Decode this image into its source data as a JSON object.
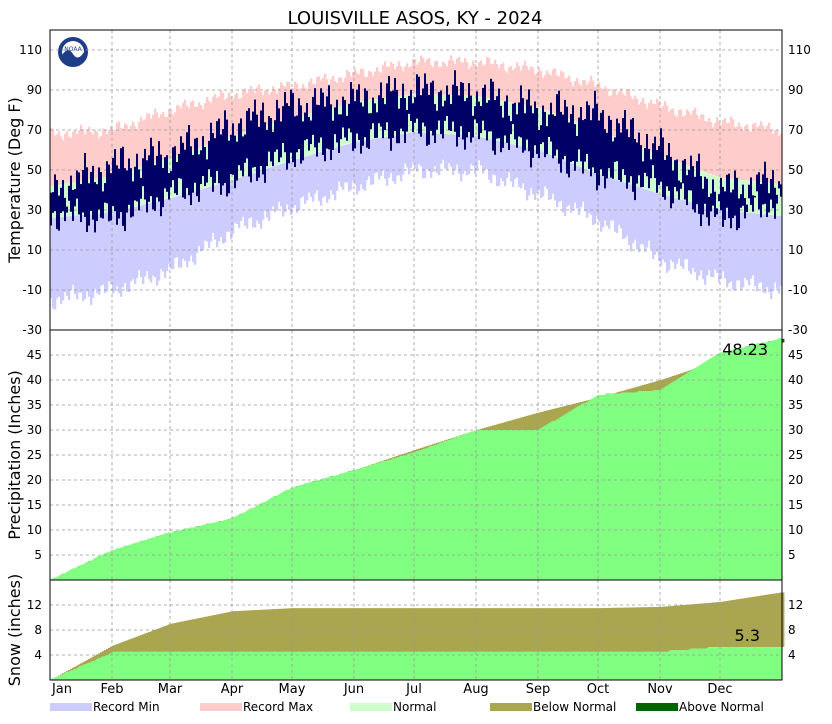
{
  "title": "LOUISVILLE   ASOS, KY - 2024",
  "colors": {
    "record_min": "#ccccff",
    "record_max": "#ffcccc",
    "normal": "#ccffcc",
    "below_normal": "#aaa64f",
    "above_normal": "#006400",
    "observed_temp": "#000066",
    "precip_fill": "#80ff80",
    "snow_fill": "#80ff80",
    "grid": "#999999"
  },
  "month_labels": [
    "Jan",
    "Feb",
    "Mar",
    "Apr",
    "May",
    "Jun",
    "Jul",
    "Aug",
    "Sep",
    "Oct",
    "Nov",
    "Dec"
  ],
  "legend": [
    {
      "label": "Record Min",
      "color": "#ccccff"
    },
    {
      "label": "Record Max",
      "color": "#ffcccc"
    },
    {
      "label": "Normal",
      "color": "#ccffcc"
    },
    {
      "label": "Below Normal",
      "color": "#aaa64f"
    },
    {
      "label": "Above Normal",
      "color": "#006400"
    }
  ],
  "chart_data": [
    {
      "type": "area",
      "panel": "temperature",
      "ylabel": "Temperature (Deg F)",
      "ylim": [
        -30,
        120
      ],
      "yticks": [
        -30,
        -10,
        10,
        30,
        50,
        70,
        90,
        110
      ],
      "grid": true,
      "x": [
        "Jan 1",
        "Feb 1",
        "Mar 1",
        "Apr 1",
        "May 1",
        "Jun 1",
        "Jul 1",
        "Aug 1",
        "Sep 1",
        "Oct 1",
        "Nov 1",
        "Dec 1",
        "Dec 31"
      ],
      "series": [
        {
          "name": "Record Max",
          "values": [
            68,
            70,
            80,
            88,
            92,
            98,
            104,
            104,
            100,
            92,
            82,
            74,
            70
          ]
        },
        {
          "name": "Record Min",
          "values": [
            -15,
            -10,
            0,
            20,
            32,
            42,
            50,
            50,
            38,
            25,
            5,
            -5,
            -10
          ]
        },
        {
          "name": "Normal High",
          "values": [
            42,
            47,
            56,
            67,
            76,
            84,
            88,
            87,
            81,
            70,
            57,
            46,
            43
          ]
        },
        {
          "name": "Normal Low",
          "values": [
            26,
            29,
            36,
            45,
            55,
            64,
            69,
            67,
            60,
            48,
            38,
            30,
            27
          ]
        },
        {
          "name": "Observed High",
          "values": [
            40,
            52,
            58,
            72,
            82,
            85,
            90,
            88,
            80,
            78,
            60,
            40,
            45
          ]
        },
        {
          "name": "Observed Low",
          "values": [
            28,
            26,
            38,
            45,
            58,
            65,
            70,
            68,
            60,
            48,
            42,
            25,
            35
          ]
        }
      ]
    },
    {
      "type": "area",
      "panel": "precipitation",
      "ylabel": "Precipitation (Inches)",
      "ylim": [
        0,
        50
      ],
      "yticks": [
        5,
        10,
        15,
        20,
        25,
        30,
        35,
        40,
        45
      ],
      "grid": true,
      "annotation": "48.23",
      "x": [
        "Jan 1",
        "Feb 1",
        "Mar 1",
        "Apr 1",
        "May 1",
        "Jun 1",
        "Jul 1",
        "Aug 1",
        "Sep 1",
        "Oct 1",
        "Nov 1",
        "Dec 1",
        "Dec 31"
      ],
      "series": [
        {
          "name": "Normal",
          "values": [
            0,
            4,
            8,
            12.5,
            17,
            22,
            26,
            30,
            33.5,
            36.5,
            40,
            44,
            47.5
          ]
        },
        {
          "name": "Observed",
          "values": [
            0,
            6,
            9.5,
            12.3,
            18.5,
            22,
            25.5,
            30,
            30,
            37,
            38,
            45.5,
            48.23
          ]
        }
      ]
    },
    {
      "type": "area",
      "panel": "snow",
      "ylabel": "Snow (inches)",
      "ylim": [
        0,
        16
      ],
      "yticks": [
        4,
        8,
        12
      ],
      "grid": true,
      "annotation": "5.3",
      "x": [
        "Jan 1",
        "Feb 1",
        "Mar 1",
        "Apr 1",
        "May 1",
        "Jun 1",
        "Jul 1",
        "Aug 1",
        "Sep 1",
        "Oct 1",
        "Nov 1",
        "Dec 1",
        "Dec 31"
      ],
      "series": [
        {
          "name": "Normal",
          "values": [
            0,
            5.5,
            9,
            11,
            11.5,
            11.5,
            11.5,
            11.5,
            11.5,
            11.5,
            11.7,
            12.5,
            14
          ]
        },
        {
          "name": "Observed",
          "values": [
            0,
            4.4,
            4.5,
            4.5,
            4.5,
            4.5,
            4.5,
            4.5,
            4.5,
            4.5,
            4.5,
            5.3,
            5.3
          ]
        }
      ]
    }
  ]
}
